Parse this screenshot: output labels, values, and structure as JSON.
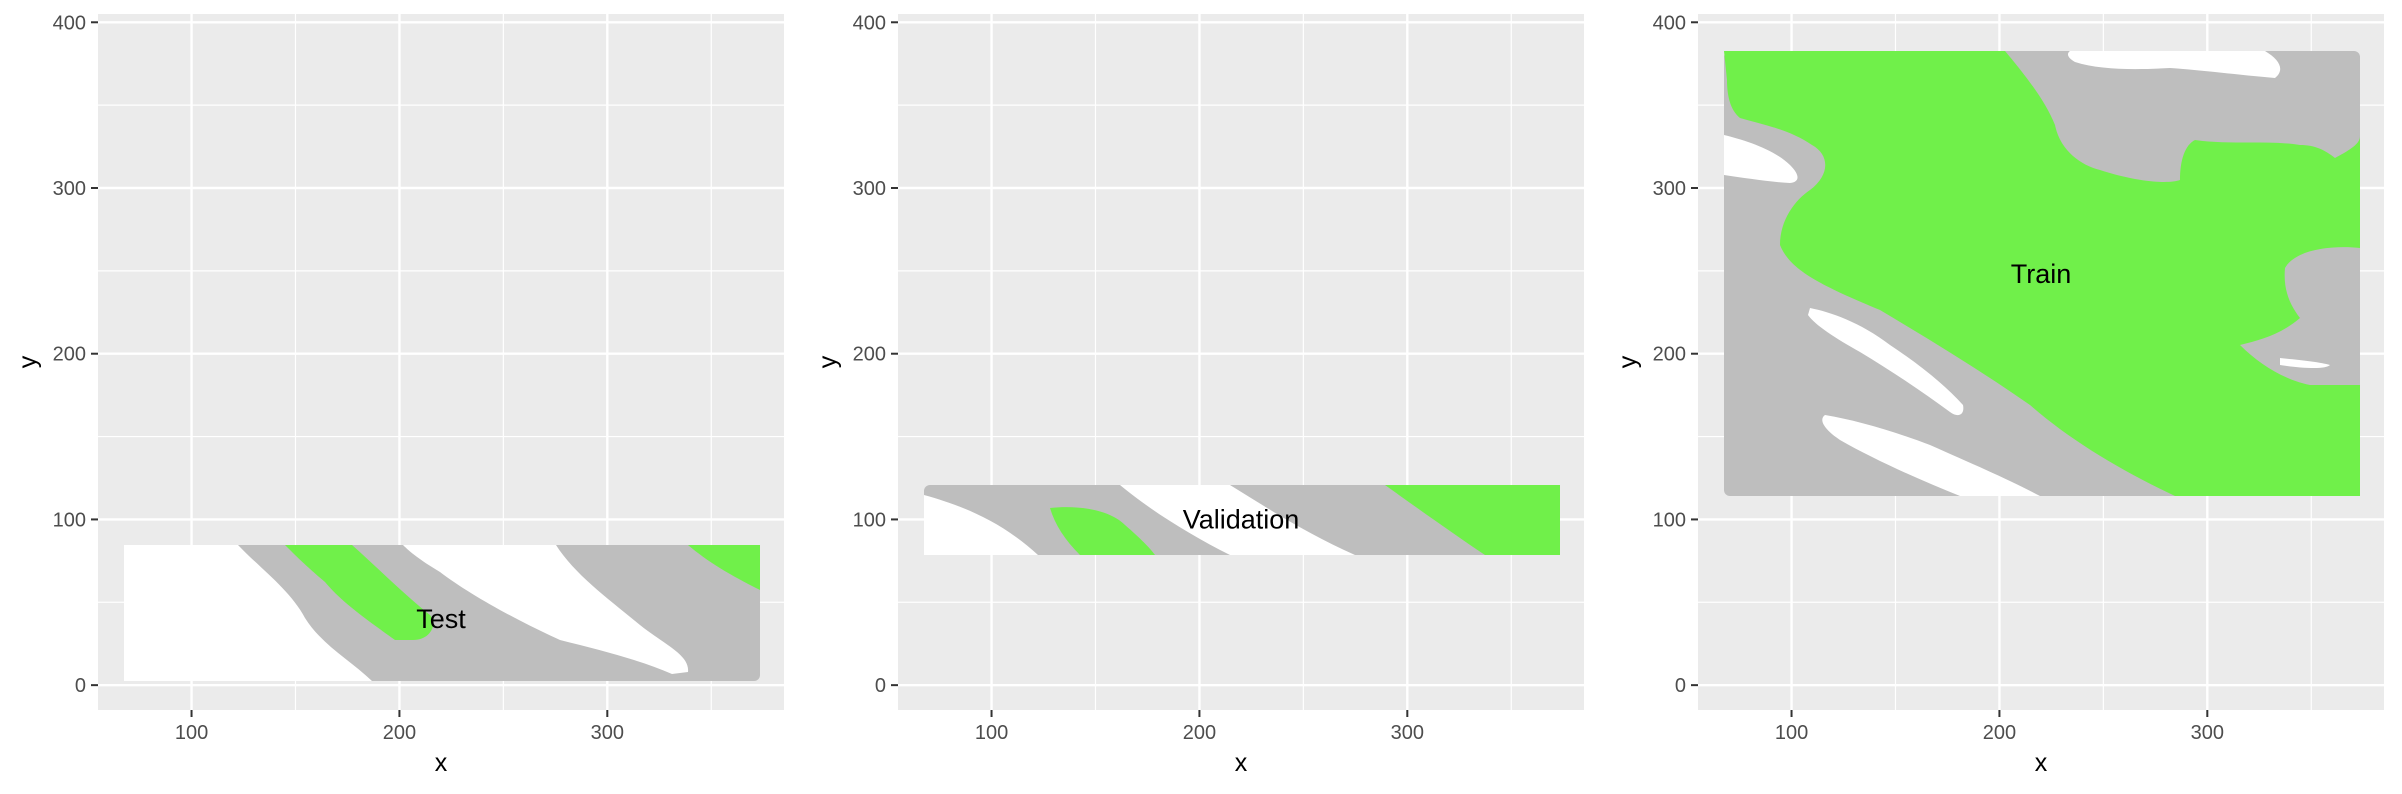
{
  "colors": {
    "panel_background": "#ebebeb",
    "gridline": "#ffffff",
    "region_gray": "#bebebe",
    "region_white": "#ffffff",
    "region_green": "#70f04a",
    "tick_text": "#4d4d4d"
  },
  "chart_data": [
    {
      "type": "area",
      "panel": "left",
      "xlabel": "x",
      "ylabel": "y",
      "xlim": [
        55,
        385
      ],
      "ylim": [
        -15,
        405
      ],
      "xticks": [
        100,
        200,
        300
      ],
      "yticks": [
        0,
        100,
        200,
        300,
        400
      ],
      "grid": true,
      "extent": {
        "xmin": 65,
        "xmax": 370,
        "ymin": 0,
        "ymax": 82
      },
      "region_label": {
        "text": "Test",
        "x": 220,
        "y": 40
      },
      "classes": [
        "gray",
        "white",
        "green"
      ]
    },
    {
      "type": "area",
      "panel": "middle",
      "xlabel": "x",
      "ylabel": "y",
      "xlim": [
        55,
        385
      ],
      "ylim": [
        -15,
        405
      ],
      "xticks": [
        100,
        200,
        300
      ],
      "yticks": [
        0,
        100,
        200,
        300,
        400
      ],
      "grid": true,
      "extent": {
        "xmin": 65,
        "xmax": 370,
        "ymin": 76,
        "ymax": 119
      },
      "region_label": {
        "text": "Validation",
        "x": 220,
        "y": 100
      },
      "classes": [
        "gray",
        "white",
        "green"
      ]
    },
    {
      "type": "area",
      "panel": "right",
      "xlabel": "x",
      "ylabel": "y",
      "xlim": [
        55,
        385
      ],
      "ylim": [
        -15,
        405
      ],
      "xticks": [
        100,
        200,
        300
      ],
      "yticks": [
        0,
        100,
        200,
        300,
        400
      ],
      "grid": true,
      "extent": {
        "xmin": 65,
        "xmax": 370,
        "ymin": 114,
        "ymax": 386
      },
      "region_label": {
        "text": "Train",
        "x": 220,
        "y": 248
      },
      "classes": [
        "gray",
        "white",
        "green"
      ]
    }
  ]
}
